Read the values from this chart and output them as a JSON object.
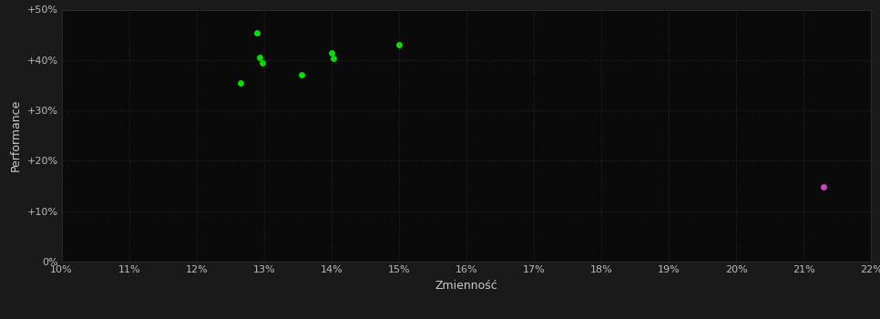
{
  "background_color": "#1a1a1a",
  "plot_bg_color": "#0a0a0a",
  "grid_color": "#2a2a2a",
  "xlabel": "Zmienność",
  "ylabel": "Performance",
  "xlim": [
    0.1,
    0.22
  ],
  "ylim": [
    0.0,
    0.5
  ],
  "xtick_vals": [
    0.1,
    0.11,
    0.12,
    0.13,
    0.14,
    0.15,
    0.16,
    0.17,
    0.18,
    0.19,
    0.2,
    0.21,
    0.22
  ],
  "ytick_vals": [
    0.0,
    0.1,
    0.2,
    0.3,
    0.4,
    0.5
  ],
  "ytick_labels": [
    "0%",
    "+10%",
    "+20%",
    "+30%",
    "+40%",
    "+50%"
  ],
  "green_points": [
    [
      0.129,
      0.453
    ],
    [
      0.1293,
      0.405
    ],
    [
      0.1297,
      0.395
    ],
    [
      0.1265,
      0.355
    ],
    [
      0.1355,
      0.37
    ],
    [
      0.14,
      0.415
    ],
    [
      0.1403,
      0.403
    ],
    [
      0.15,
      0.43
    ]
  ],
  "magenta_points": [
    [
      0.213,
      0.148
    ]
  ],
  "green_color": "#00dd00",
  "magenta_color": "#cc44cc",
  "text_color": "#cccccc",
  "tick_color": "#bbbbbb",
  "font_size_label": 9,
  "font_size_tick": 8,
  "marker_size": 5
}
